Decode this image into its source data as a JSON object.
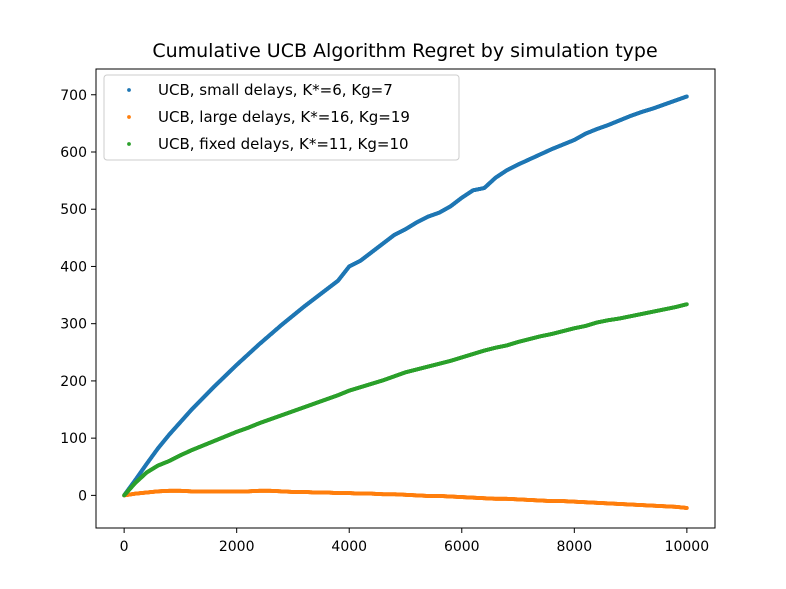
{
  "chart_data": {
    "type": "scatter",
    "title": "Cumulative UCB Algorithm Regret by simulation type",
    "xlabel": "",
    "ylabel": "",
    "xlim": [
      -500,
      10500
    ],
    "ylim": [
      -57,
      745
    ],
    "xticks": [
      0,
      2000,
      4000,
      6000,
      8000,
      10000
    ],
    "xtick_labels": [
      "0",
      "2000",
      "4000",
      "6000",
      "8000",
      "10000"
    ],
    "yticks": [
      0,
      100,
      200,
      300,
      400,
      500,
      600,
      700
    ],
    "ytick_labels": [
      "0",
      "100",
      "200",
      "300",
      "400",
      "500",
      "600",
      "700"
    ],
    "grid": false,
    "legend_position": "upper-left",
    "series": [
      {
        "name": "UCB, small delays, K*=6, Kg=7",
        "color": "#1f77b4",
        "x": [
          0,
          200,
          400,
          600,
          800,
          1000,
          1200,
          1400,
          1600,
          1800,
          2000,
          2200,
          2400,
          2600,
          2800,
          3000,
          3200,
          3400,
          3600,
          3800,
          4000,
          4200,
          4400,
          4600,
          4800,
          5000,
          5200,
          5400,
          5600,
          5800,
          6000,
          6200,
          6400,
          6600,
          6800,
          7000,
          7200,
          7400,
          7600,
          7800,
          8000,
          8200,
          8400,
          8600,
          8800,
          9000,
          9200,
          9400,
          9600,
          9800,
          10000
        ],
        "y": [
          0,
          27,
          55,
          82,
          106,
          128,
          150,
          170,
          190,
          209,
          228,
          246,
          264,
          281,
          298,
          314,
          330,
          345,
          360,
          375,
          400,
          410,
          425,
          440,
          455,
          465,
          477,
          487,
          494,
          505,
          520,
          533,
          537,
          555,
          568,
          578,
          587,
          596,
          605,
          613,
          621,
          632,
          640,
          647,
          655,
          663,
          670,
          676,
          683,
          690,
          697
        ]
      },
      {
        "name": "UCB, large delays, K*=16, Kg=19",
        "color": "#ff7f0e",
        "x": [
          0,
          200,
          400,
          600,
          800,
          1000,
          1200,
          1400,
          1600,
          1800,
          2000,
          2200,
          2400,
          2600,
          2800,
          3000,
          3200,
          3400,
          3600,
          3800,
          4000,
          4200,
          4400,
          4600,
          4800,
          5000,
          5200,
          5400,
          5600,
          5800,
          6000,
          6200,
          6400,
          6600,
          6800,
          7000,
          7200,
          7400,
          7600,
          7800,
          8000,
          8200,
          8400,
          8600,
          8800,
          9000,
          9200,
          9400,
          9600,
          9800,
          10000
        ],
        "y": [
          0,
          3,
          5,
          7,
          8,
          8,
          7,
          7,
          7,
          7,
          7,
          7,
          8,
          8,
          7,
          6,
          6,
          5,
          5,
          4,
          4,
          3,
          3,
          2,
          2,
          1,
          0,
          -1,
          -1,
          -2,
          -3,
          -4,
          -5,
          -6,
          -6,
          -7,
          -8,
          -9,
          -10,
          -10,
          -11,
          -12,
          -13,
          -14,
          -15,
          -16,
          -17,
          -18,
          -19,
          -20,
          -22
        ]
      },
      {
        "name": "UCB, fixed delays, K*=11, Kg=10",
        "color": "#2ca02c",
        "x": [
          0,
          200,
          400,
          600,
          800,
          1000,
          1200,
          1400,
          1600,
          1800,
          2000,
          2200,
          2400,
          2600,
          2800,
          3000,
          3200,
          3400,
          3600,
          3800,
          4000,
          4200,
          4400,
          4600,
          4800,
          5000,
          5200,
          5400,
          5600,
          5800,
          6000,
          6200,
          6400,
          6600,
          6800,
          7000,
          7200,
          7400,
          7600,
          7800,
          8000,
          8200,
          8400,
          8600,
          8800,
          9000,
          9200,
          9400,
          9600,
          9800,
          10000
        ],
        "y": [
          0,
          22,
          40,
          52,
          60,
          70,
          79,
          87,
          95,
          103,
          111,
          118,
          126,
          133,
          140,
          147,
          154,
          161,
          168,
          175,
          183,
          189,
          195,
          201,
          208,
          215,
          220,
          225,
          230,
          235,
          241,
          247,
          253,
          258,
          262,
          268,
          273,
          278,
          282,
          287,
          292,
          296,
          302,
          306,
          309,
          313,
          317,
          321,
          325,
          329,
          334
        ]
      }
    ]
  }
}
